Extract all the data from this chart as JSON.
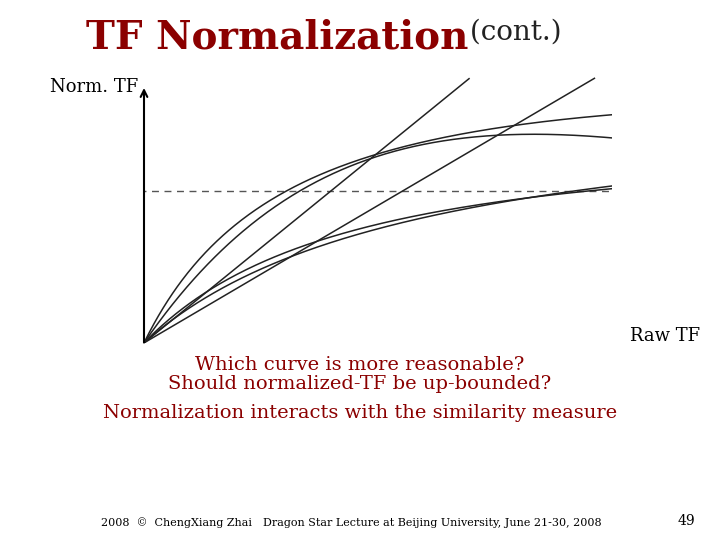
{
  "title_main": "TF Normalization",
  "title_cont": " (cont.)",
  "title_color_main": "#8B0000",
  "title_color_cont": "#333333",
  "title_fontsize": 28,
  "title_cont_fontsize": 20,
  "ylabel": "Norm. TF",
  "xlabel": "Raw TF",
  "ylabel_fontsize": 13,
  "xlabel_fontsize": 13,
  "bg_color": "#ffffff",
  "dashed_line_y": 0.62,
  "dashed_color": "#555555",
  "curve_color": "#222222",
  "text_q1": "Which curve is more reasonable?",
  "text_q2": "Should normalized-TF be up-bounded?",
  "text_q3": "Normalization interacts with the similarity measure",
  "text_color_q": "#8B0000",
  "text_fontsize_q": 14,
  "text_fontsize_q3": 14,
  "footer_text": "2008  ©  ChengXiang Zhai",
  "footer_text2": "Dragon Star Lecture at Beijing University, June 21-30, 2008",
  "footer_page": "49",
  "footer_fontsize": 8
}
